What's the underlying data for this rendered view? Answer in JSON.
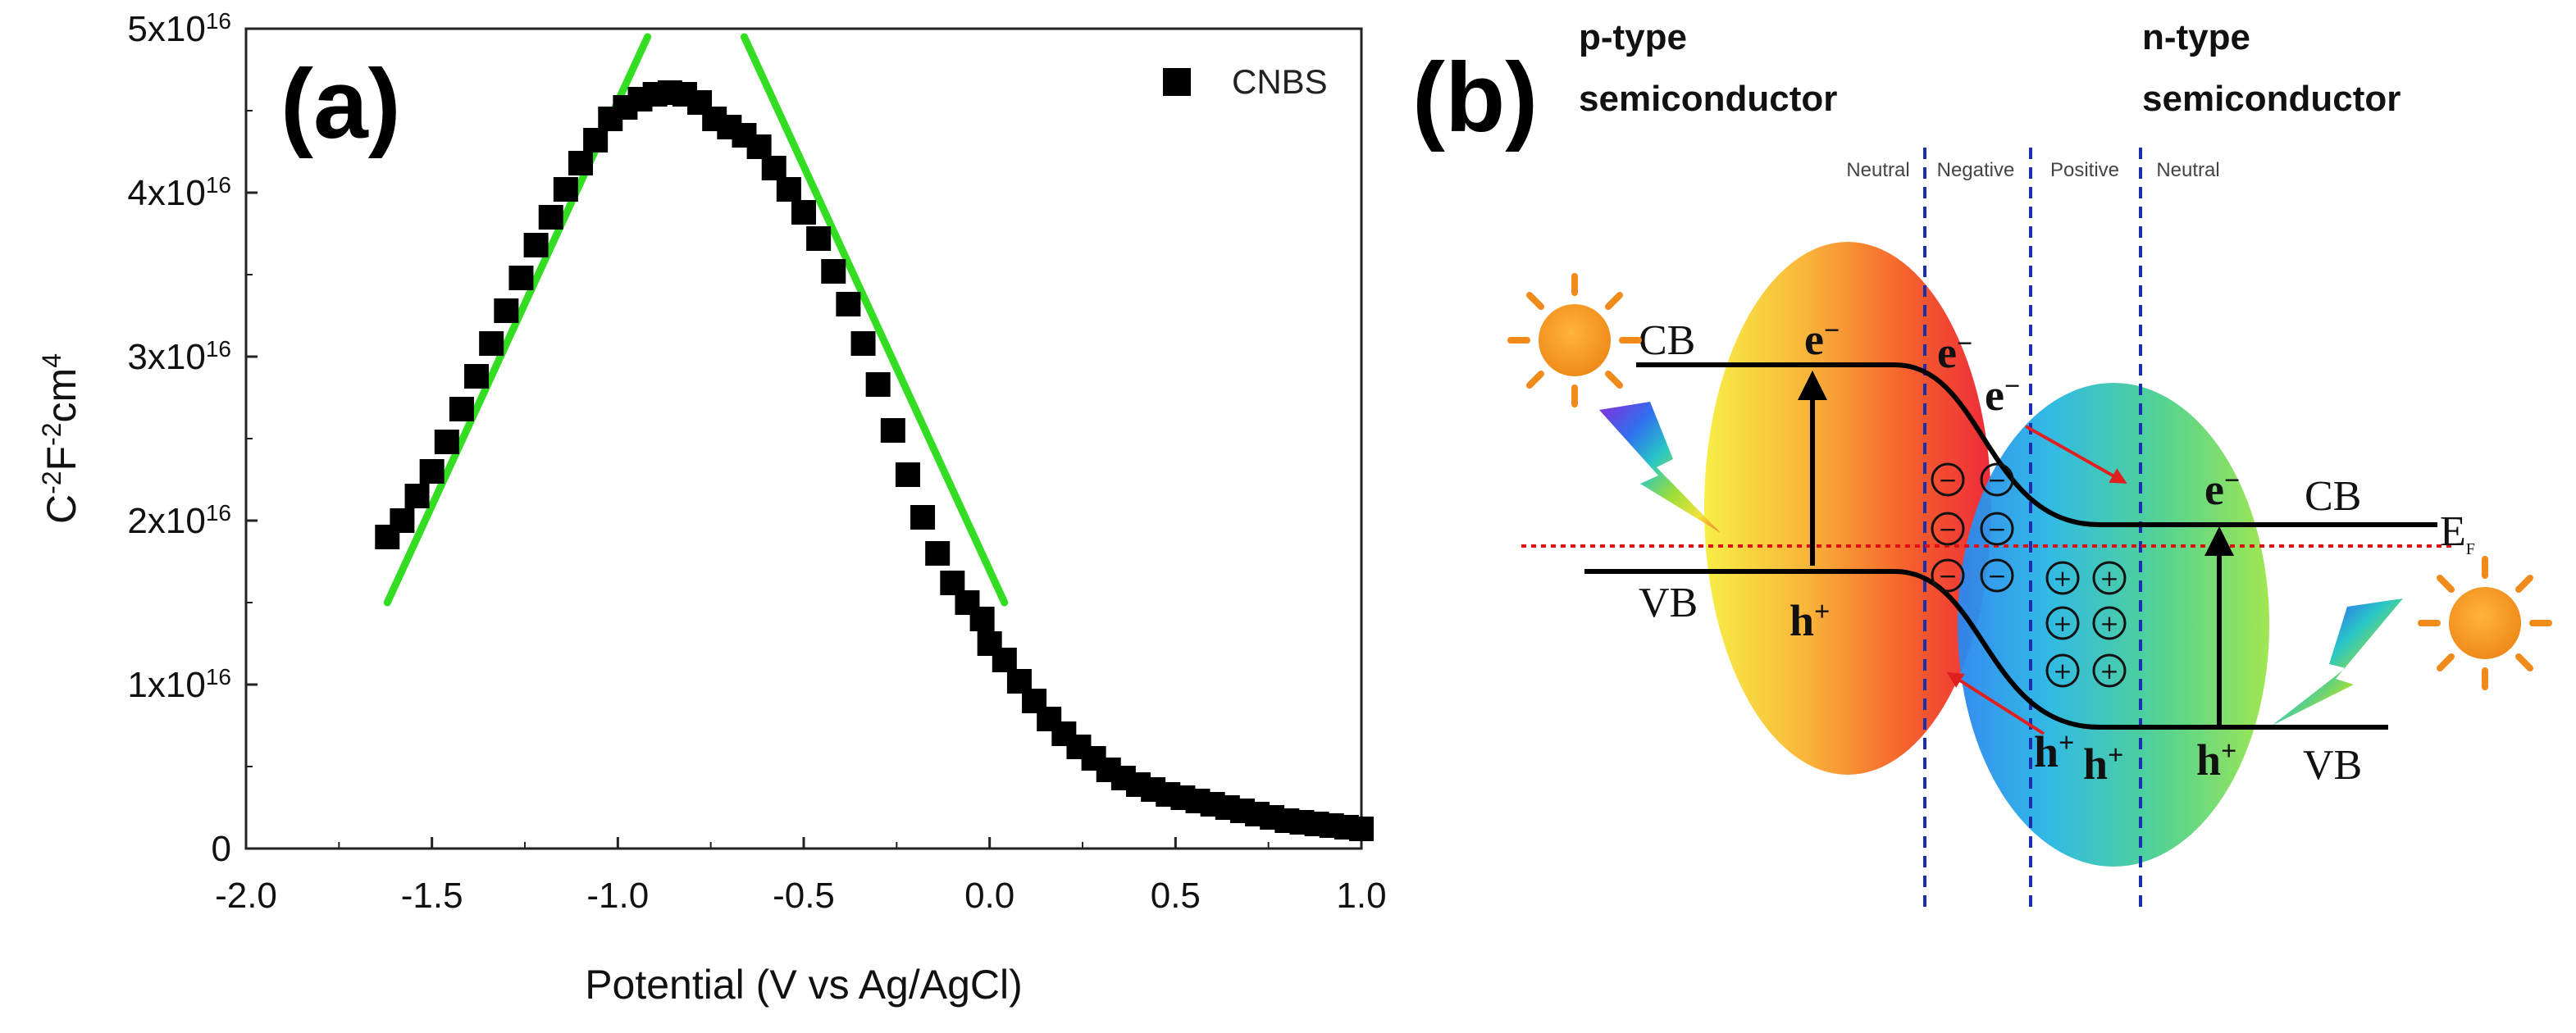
{
  "panel_a": {
    "label": "(a)",
    "series_name": "CNBS",
    "fit_line_color": "#33dd22",
    "marker_color": "#000000"
  },
  "panel_b": {
    "label": "(b)",
    "p_head_line1": "p-type",
    "p_head_line2": "semiconductor",
    "n_head_line1": "n-type",
    "n_head_line2": "semiconductor",
    "regions": [
      "Neutral",
      "Negative",
      "Positive",
      "Neutral"
    ],
    "cb_left": "CB",
    "vb_left": "VB",
    "cb_right": "CB",
    "vb_right": "VB",
    "fermi_label": "E",
    "fermi_sub": "F",
    "electron_base": "e",
    "electron_sup": "−",
    "hole_base": "h",
    "hole_sup": "+",
    "negative_sign": "−",
    "positive_sign": "+",
    "band_color": "#000000",
    "fermi_color": "#e01010",
    "divider_color": "#1a2fb0"
  },
  "chart_data": {
    "type": "scatter",
    "title": "",
    "xlabel": "Potential (V vs Ag/AgCl)",
    "ylabel": {
      "base1": "C",
      "sup1": "-2",
      "base2": "F",
      "sup2": "-2",
      "base3": "cm",
      "sup3": "4"
    },
    "xlim": [
      -2.0,
      1.0
    ],
    "ylim": [
      0,
      5e+16
    ],
    "x_ticks": [
      -2.0,
      -1.5,
      -1.0,
      -0.5,
      0.0,
      0.5,
      1.0
    ],
    "x_tick_labels": [
      "-2.0",
      "-1.5",
      "-1.0",
      "-0.5",
      "0.0",
      "0.5",
      "1.0"
    ],
    "y_ticks": [
      0,
      1e+16,
      2e+16,
      3e+16,
      4e+16,
      5e+16
    ],
    "y_tick_labels": [
      {
        "base": "0",
        "exp": ""
      },
      {
        "base": "1x10",
        "exp": "16"
      },
      {
        "base": "2x10",
        "exp": "16"
      },
      {
        "base": "3x10",
        "exp": "16"
      },
      {
        "base": "4x10",
        "exp": "16"
      },
      {
        "base": "5x10",
        "exp": "16"
      }
    ],
    "legend_position": "top-right",
    "series": [
      {
        "name": "CNBS",
        "marker": "square",
        "x": [
          -1.62,
          -1.58,
          -1.54,
          -1.5,
          -1.46,
          -1.42,
          -1.38,
          -1.34,
          -1.3,
          -1.26,
          -1.22,
          -1.18,
          -1.14,
          -1.1,
          -1.06,
          -1.02,
          -0.98,
          -0.94,
          -0.9,
          -0.86,
          -0.82,
          -0.78,
          -0.74,
          -0.7,
          -0.66,
          -0.62,
          -0.58,
          -0.54,
          -0.5,
          -0.46,
          -0.42,
          -0.38,
          -0.34,
          -0.3,
          -0.26,
          -0.22,
          -0.18,
          -0.14,
          -0.1,
          -0.06,
          -0.02,
          0.0,
          0.04,
          0.08,
          0.12,
          0.16,
          0.2,
          0.24,
          0.28,
          0.32,
          0.36,
          0.4,
          0.44,
          0.48,
          0.52,
          0.56,
          0.6,
          0.64,
          0.68,
          0.72,
          0.76,
          0.8,
          0.84,
          0.88,
          0.92,
          0.96,
          1.0
        ],
        "y": [
          1.9e+16,
          2e+16,
          2.15e+16,
          2.3e+16,
          2.48e+16,
          2.68e+16,
          2.88e+16,
          3.08e+16,
          3.28e+16,
          3.48e+16,
          3.68e+16,
          3.85e+16,
          4.02e+16,
          4.18e+16,
          4.32e+16,
          4.45e+16,
          4.52e+16,
          4.57e+16,
          4.6e+16,
          4.61e+16,
          4.6e+16,
          4.55e+16,
          4.45e+16,
          4.4e+16,
          4.35e+16,
          4.28e+16,
          4.15e+16,
          4.02e+16,
          3.88e+16,
          3.72e+16,
          3.52e+16,
          3.32e+16,
          3.08e+16,
          2.83e+16,
          2.55e+16,
          2.28e+16,
          2.02e+16,
          1.8e+16,
          1.62e+16,
          1.5e+16,
          1.4e+16,
          1.25e+16,
          1.15e+16,
          1.02e+16,
          9000000000000000.0,
          7900000000000000.0,
          7000000000000000.0,
          6200000000000000.0,
          5500000000000000.0,
          4800000000000000.0,
          4300000000000000.0,
          3900000000000000.0,
          3600000000000000.0,
          3300000000000000.0,
          3100000000000000.0,
          2900000000000000.0,
          2700000000000000.0,
          2500000000000000.0,
          2300000000000000.0,
          2100000000000000.0,
          1900000000000000.0,
          1700000000000000.0,
          1600000000000000.0,
          1500000000000000.0,
          1400000000000000.0,
          1300000000000000.0,
          1200000000000000.0
        ]
      }
    ],
    "fit_lines": [
      {
        "name": "linear-fit-rising",
        "x": [
          -1.62,
          -0.92
        ],
        "y": [
          1.5e+16,
          4.95e+16
        ]
      },
      {
        "name": "linear-fit-falling",
        "x": [
          -0.66,
          0.04
        ],
        "y": [
          4.95e+16,
          1.5e+16
        ]
      }
    ]
  }
}
